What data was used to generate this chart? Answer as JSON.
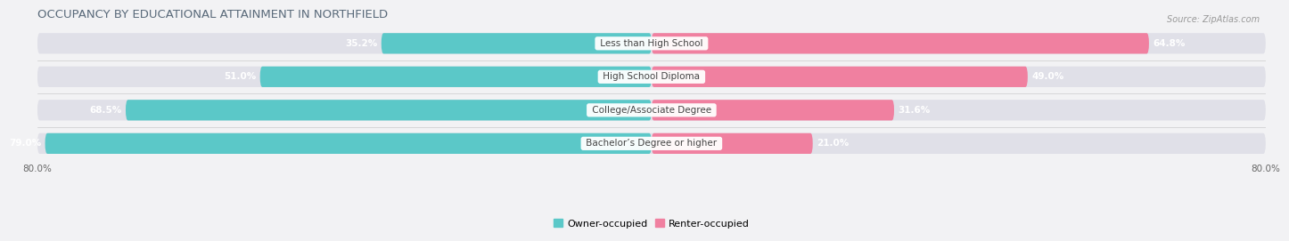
{
  "title": "OCCUPANCY BY EDUCATIONAL ATTAINMENT IN NORTHFIELD",
  "source": "Source: ZipAtlas.com",
  "categories": [
    "Less than High School",
    "High School Diploma",
    "College/Associate Degree",
    "Bachelor’s Degree or higher"
  ],
  "owner_pct": [
    35.2,
    51.0,
    68.5,
    79.0
  ],
  "renter_pct": [
    64.8,
    49.0,
    31.6,
    21.0
  ],
  "owner_color": "#5BC8C8",
  "renter_color": "#F080A0",
  "track_color": "#E0E0E8",
  "bar_height": 0.62,
  "xlim_left": -80.0,
  "xlim_right": 80.0,
  "title_fontsize": 9.5,
  "source_fontsize": 7,
  "pct_label_fontsize": 7.5,
  "cat_label_fontsize": 7.5,
  "axis_label_fontsize": 7.5,
  "legend_fontsize": 8,
  "bg_color": "#F2F2F4",
  "title_color": "#5A6A7A",
  "source_color": "#999999"
}
